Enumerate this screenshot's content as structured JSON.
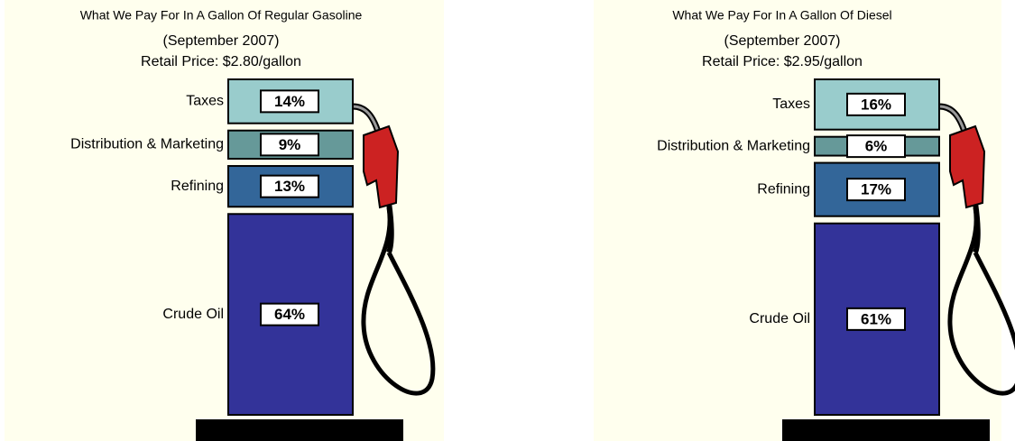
{
  "chart_data": [
    {
      "type": "pump",
      "title": "What We Pay For In A Gallon Of Regular Gasoline",
      "subtitle": "(September 2007)",
      "annotation": "Retail Price: $2.80/gallon",
      "categories": [
        "Taxes",
        "Distribution & Marketing",
        "Refining",
        "Crude Oil"
      ],
      "values": [
        14,
        9,
        13,
        64
      ],
      "value_labels": [
        "14%",
        "9%",
        "13%",
        "64%"
      ],
      "colors": [
        "#99cccc",
        "#669999",
        "#336699",
        "#333399"
      ]
    },
    {
      "type": "pump",
      "title": "What We Pay For In A Gallon Of Diesel",
      "subtitle": "(September 2007)",
      "annotation": "Retail Price: $2.95/gallon",
      "categories": [
        "Taxes",
        "Distribution & Marketing",
        "Refining",
        "Crude Oil"
      ],
      "values": [
        16,
        6,
        17,
        61
      ],
      "value_labels": [
        "16%",
        "6%",
        "17%",
        "61%"
      ],
      "colors": [
        "#99cccc",
        "#669999",
        "#336699",
        "#333399"
      ]
    }
  ]
}
